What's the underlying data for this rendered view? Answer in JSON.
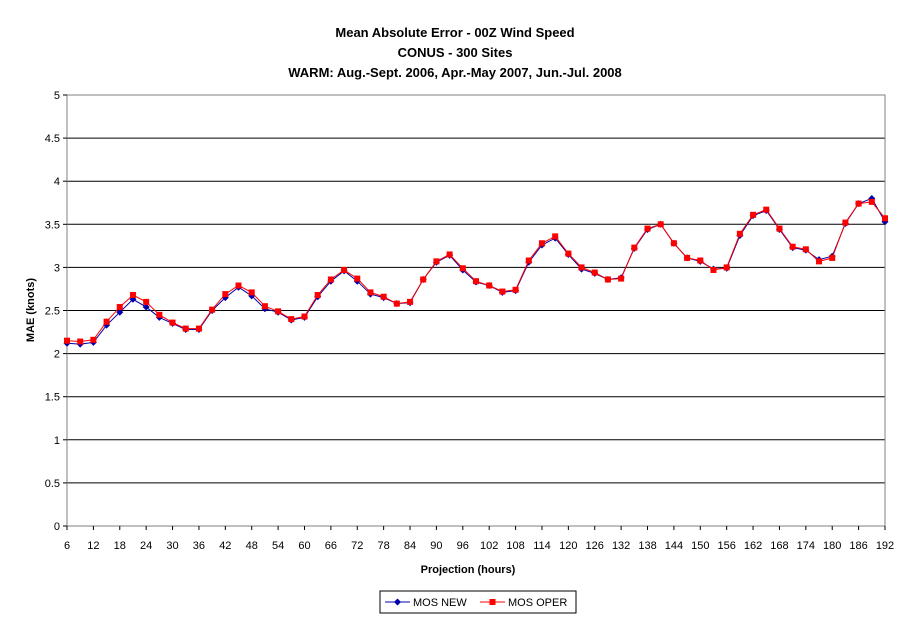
{
  "chart_data": {
    "type": "line",
    "title": "Mean Absolute Error - 00Z Wind Speed",
    "subtitle": "CONUS - 300 Sites",
    "subtitle2": "WARM: Aug.-Sept. 2006, Apr.-May 2007, Jun.-Jul. 2008",
    "xlabel": "Projection (hours)",
    "ylabel": "MAE (knots)",
    "ylim": [
      0,
      5
    ],
    "yticks": [
      "0",
      "0.5",
      "1",
      "1.5",
      "2",
      "2.5",
      "3",
      "3.5",
      "4",
      "4.5",
      "5"
    ],
    "xticks": [
      "6",
      "12",
      "18",
      "24",
      "30",
      "36",
      "42",
      "48",
      "54",
      "60",
      "66",
      "72",
      "78",
      "84",
      "90",
      "96",
      "102",
      "108",
      "114",
      "120",
      "126",
      "132",
      "138",
      "144",
      "150",
      "156",
      "162",
      "168",
      "174",
      "180",
      "186",
      "192"
    ],
    "grid": "horizontal",
    "legend": "bottom",
    "x": [
      6,
      9,
      12,
      15,
      18,
      21,
      24,
      27,
      30,
      33,
      36,
      39,
      42,
      45,
      48,
      51,
      54,
      57,
      60,
      63,
      66,
      69,
      72,
      75,
      78,
      81,
      84,
      87,
      90,
      93,
      96,
      99,
      102,
      105,
      108,
      111,
      114,
      117,
      120,
      123,
      126,
      129,
      132,
      135,
      138,
      141,
      144,
      147,
      150,
      153,
      156,
      159,
      162,
      165,
      168,
      171,
      174,
      177,
      180,
      183,
      186,
      189,
      192
    ],
    "series": [
      {
        "name": "MOS NEW",
        "color": "#0000aa",
        "marker": "diamond",
        "values": [
          2.12,
          2.11,
          2.13,
          2.33,
          2.48,
          2.63,
          2.54,
          2.42,
          2.35,
          2.28,
          2.28,
          2.5,
          2.65,
          2.77,
          2.67,
          2.52,
          2.48,
          2.39,
          2.42,
          2.66,
          2.84,
          2.96,
          2.84,
          2.69,
          2.65,
          2.58,
          2.59,
          2.86,
          3.06,
          3.14,
          2.97,
          2.83,
          2.79,
          2.71,
          2.73,
          3.06,
          3.26,
          3.34,
          3.15,
          2.98,
          2.93,
          2.86,
          2.88,
          3.22,
          3.44,
          3.5,
          3.28,
          3.11,
          3.07,
          2.98,
          2.99,
          3.37,
          3.6,
          3.66,
          3.44,
          3.23,
          3.2,
          3.09,
          3.13,
          3.51,
          3.74,
          3.8,
          3.53
        ]
      },
      {
        "name": "MOS OPER",
        "color": "#ff0000",
        "marker": "square",
        "values": [
          2.15,
          2.14,
          2.16,
          2.37,
          2.54,
          2.68,
          2.6,
          2.45,
          2.36,
          2.29,
          2.29,
          2.51,
          2.69,
          2.79,
          2.71,
          2.55,
          2.49,
          2.4,
          2.43,
          2.68,
          2.86,
          2.97,
          2.87,
          2.71,
          2.66,
          2.58,
          2.6,
          2.86,
          3.07,
          3.15,
          2.99,
          2.84,
          2.79,
          2.72,
          2.74,
          3.08,
          3.28,
          3.36,
          3.16,
          3.0,
          2.94,
          2.86,
          2.87,
          3.23,
          3.45,
          3.5,
          3.28,
          3.11,
          3.08,
          2.97,
          3.0,
          3.39,
          3.61,
          3.67,
          3.45,
          3.24,
          3.21,
          3.07,
          3.11,
          3.52,
          3.74,
          3.76,
          3.57
        ]
      }
    ]
  }
}
